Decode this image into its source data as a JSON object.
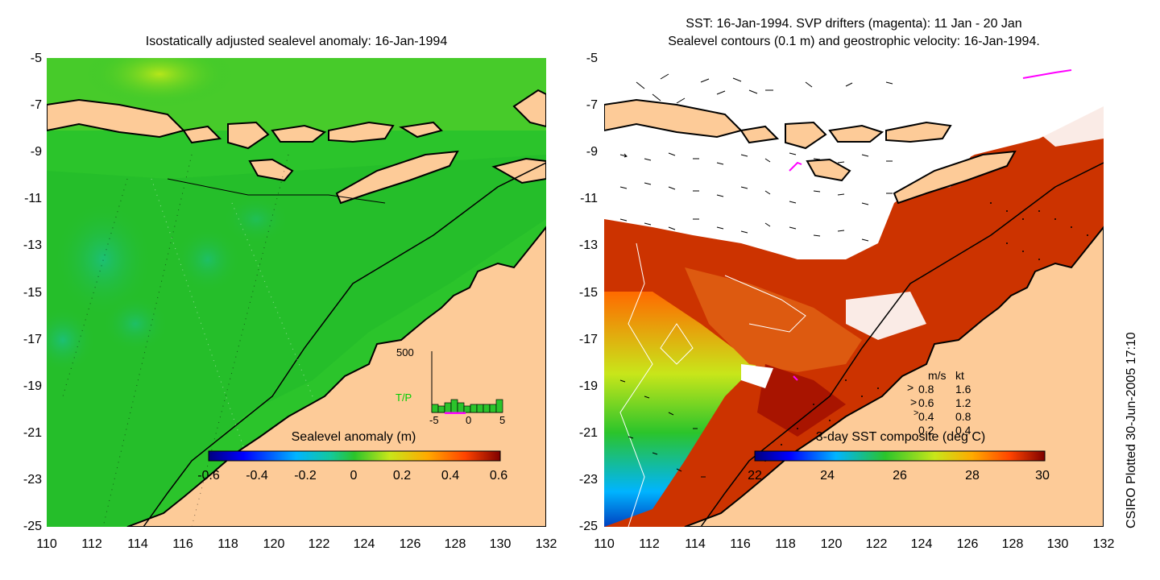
{
  "left_panel": {
    "title": "Isostatically adjusted sealevel anomaly: 16-Jan-1994",
    "colorbar": {
      "label": "Sealevel anomaly (m)",
      "ticks": [
        "-0.6",
        "-0.4",
        "-0.2",
        "0",
        "0.2",
        "0.4",
        "0.6"
      ],
      "range": [
        -0.6,
        0.6
      ]
    },
    "inset": {
      "label": "T/P",
      "ymax_label": "500",
      "xticks": [
        "-5",
        "0",
        "5"
      ],
      "label_color": "#00cc00"
    }
  },
  "right_panel": {
    "title_line1": "SST: 16-Jan-1994. SVP drifters (magenta): 11 Jan - 20 Jan",
    "title_line2": "Sealevel contours (0.1 m) and geostrophic velocity: 16-Jan-1994.",
    "colorbar": {
      "label": "3-day SST composite (deg C)",
      "ticks": [
        "22",
        "24",
        "26",
        "28",
        "30"
      ],
      "range": [
        22,
        30
      ]
    },
    "velocity_legend": {
      "header_ms": "m/s",
      "header_kt": "kt",
      "rows": [
        {
          "ms": "0.8",
          "kt": "1.6"
        },
        {
          "ms": "0.6",
          "kt": "1.2"
        },
        {
          "ms": "0.4",
          "kt": "0.8"
        },
        {
          "ms": "0.2",
          "kt": "0.4"
        }
      ]
    }
  },
  "axes": {
    "lat_ticks": [
      "-5",
      "-7",
      "-9",
      "-11",
      "-13",
      "-15",
      "-17",
      "-19",
      "-21",
      "-23",
      "-25"
    ],
    "lon_ticks": [
      "110",
      "112",
      "114",
      "116",
      "118",
      "120",
      "122",
      "124",
      "126",
      "128",
      "130",
      "132"
    ],
    "lat_range": [
      -25,
      -5
    ],
    "lon_range": [
      110,
      132
    ]
  },
  "side_note": "CSIRO Plotted 30-Jun-2005 17:10",
  "colors": {
    "land": "#fdcb98",
    "ocean_left": "#2bc42b",
    "drifter": "#ff00ff"
  }
}
